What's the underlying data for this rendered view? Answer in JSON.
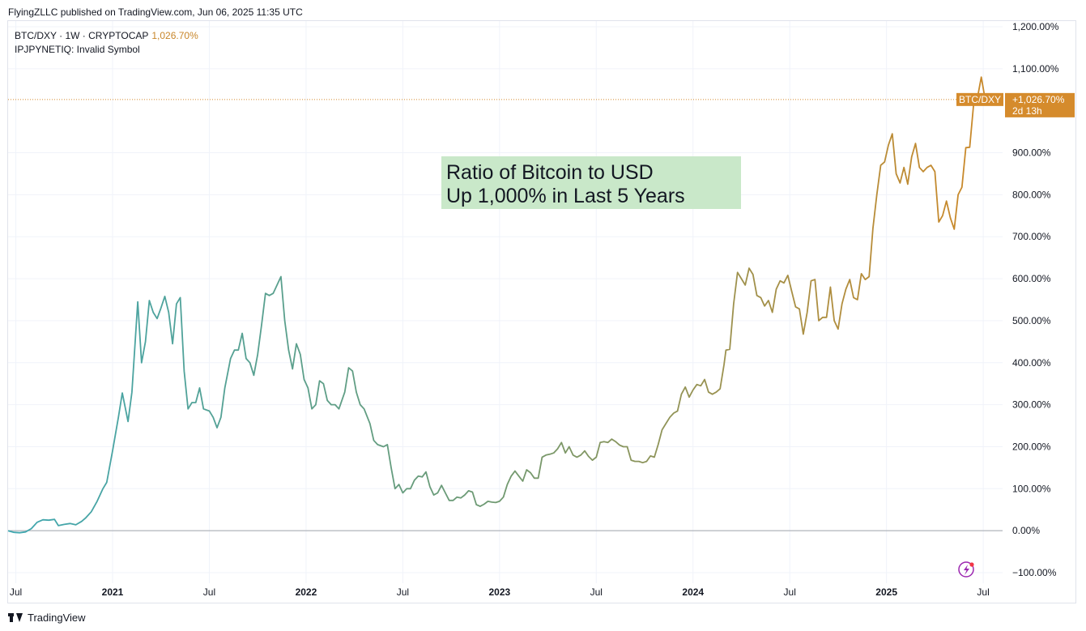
{
  "header": {
    "published_by": "FlyingZLLC published on TradingView.com, Jun 06, 2025 11:35 UTC"
  },
  "legend": {
    "symbol_line": "BTC/DXY · 1W · CRYPTOCAP",
    "symbol_value": "1,026.70%",
    "invalid_line": "IPJPYNETIQ: Invalid Symbol"
  },
  "footer": {
    "brand": "TradingView"
  },
  "colors": {
    "line_start": "#3fa7b0",
    "line_mid": "#6e9a73",
    "line_end": "#c8892b",
    "badge": "#d58b2c",
    "grid": "#f0f3fa",
    "annotation_bg": "#c9e8c9",
    "zero_line": "#a0a4ab"
  },
  "chart_data": {
    "type": "line",
    "title": "",
    "xlabel": "",
    "ylabel": "",
    "ylim": [
      -100,
      1200
    ],
    "xlim": [
      2020.46,
      2025.6
    ],
    "grid": true,
    "y_ticks": [
      "1,200.00%",
      "1,100.00%",
      "900.00%",
      "800.00%",
      "700.00%",
      "600.00%",
      "500.00%",
      "400.00%",
      "300.00%",
      "200.00%",
      "100.00%",
      "0.00%",
      "−100.00%"
    ],
    "y_tick_values": [
      1200,
      1100,
      900,
      800,
      700,
      600,
      500,
      400,
      300,
      200,
      100,
      0,
      -100
    ],
    "x_ticks": [
      {
        "label": "Jul",
        "t": 2020.5,
        "bold": false
      },
      {
        "label": "2021",
        "t": 2021.0,
        "bold": true
      },
      {
        "label": "Jul",
        "t": 2021.5,
        "bold": false
      },
      {
        "label": "2022",
        "t": 2022.0,
        "bold": true
      },
      {
        "label": "Jul",
        "t": 2022.5,
        "bold": false
      },
      {
        "label": "2023",
        "t": 2023.0,
        "bold": true
      },
      {
        "label": "Jul",
        "t": 2023.5,
        "bold": false
      },
      {
        "label": "2024",
        "t": 2024.0,
        "bold": true
      },
      {
        "label": "Jul",
        "t": 2024.5,
        "bold": false
      },
      {
        "label": "2025",
        "t": 2025.0,
        "bold": true
      },
      {
        "label": "Jul",
        "t": 2025.5,
        "bold": false
      }
    ],
    "series": [
      {
        "name": "BTC/DXY",
        "points": [
          [
            2020.46,
            0
          ],
          [
            2020.49,
            -4
          ],
          [
            2020.52,
            -5
          ],
          [
            2020.55,
            -3
          ],
          [
            2020.58,
            5
          ],
          [
            2020.61,
            20
          ],
          [
            2020.64,
            26
          ],
          [
            2020.67,
            25
          ],
          [
            2020.7,
            27
          ],
          [
            2020.72,
            12
          ],
          [
            2020.75,
            15
          ],
          [
            2020.78,
            17
          ],
          [
            2020.81,
            14
          ],
          [
            2020.84,
            22
          ],
          [
            2020.86,
            30
          ],
          [
            2020.89,
            45
          ],
          [
            2020.92,
            70
          ],
          [
            2020.95,
            100
          ],
          [
            2020.97,
            115
          ],
          [
            2021.0,
            190
          ],
          [
            2021.03,
            270
          ],
          [
            2021.05,
            328
          ],
          [
            2021.08,
            260
          ],
          [
            2021.1,
            330
          ],
          [
            2021.13,
            545
          ],
          [
            2021.15,
            400
          ],
          [
            2021.17,
            450
          ],
          [
            2021.19,
            548
          ],
          [
            2021.21,
            520
          ],
          [
            2021.23,
            505
          ],
          [
            2021.25,
            530
          ],
          [
            2021.27,
            558
          ],
          [
            2021.29,
            520
          ],
          [
            2021.31,
            445
          ],
          [
            2021.33,
            540
          ],
          [
            2021.35,
            555
          ],
          [
            2021.37,
            380
          ],
          [
            2021.39,
            290
          ],
          [
            2021.41,
            305
          ],
          [
            2021.43,
            305
          ],
          [
            2021.45,
            340
          ],
          [
            2021.47,
            290
          ],
          [
            2021.5,
            285
          ],
          [
            2021.52,
            270
          ],
          [
            2021.54,
            245
          ],
          [
            2021.56,
            270
          ],
          [
            2021.58,
            340
          ],
          [
            2021.61,
            410
          ],
          [
            2021.63,
            430
          ],
          [
            2021.65,
            430
          ],
          [
            2021.67,
            470
          ],
          [
            2021.69,
            410
          ],
          [
            2021.71,
            400
          ],
          [
            2021.73,
            370
          ],
          [
            2021.75,
            420
          ],
          [
            2021.77,
            490
          ],
          [
            2021.79,
            565
          ],
          [
            2021.81,
            560
          ],
          [
            2021.83,
            565
          ],
          [
            2021.85,
            585
          ],
          [
            2021.87,
            605
          ],
          [
            2021.89,
            500
          ],
          [
            2021.91,
            430
          ],
          [
            2021.93,
            385
          ],
          [
            2021.95,
            445
          ],
          [
            2021.97,
            420
          ],
          [
            2021.99,
            360
          ],
          [
            2022.01,
            340
          ],
          [
            2022.03,
            290
          ],
          [
            2022.05,
            300
          ],
          [
            2022.07,
            357
          ],
          [
            2022.09,
            350
          ],
          [
            2022.11,
            310
          ],
          [
            2022.13,
            300
          ],
          [
            2022.15,
            300
          ],
          [
            2022.17,
            290
          ],
          [
            2022.2,
            330
          ],
          [
            2022.22,
            388
          ],
          [
            2022.24,
            380
          ],
          [
            2022.26,
            330
          ],
          [
            2022.28,
            300
          ],
          [
            2022.3,
            290
          ],
          [
            2022.33,
            255
          ],
          [
            2022.35,
            215
          ],
          [
            2022.37,
            205
          ],
          [
            2022.4,
            200
          ],
          [
            2022.42,
            205
          ],
          [
            2022.44,
            150
          ],
          [
            2022.46,
            100
          ],
          [
            2022.48,
            110
          ],
          [
            2022.5,
            90
          ],
          [
            2022.52,
            100
          ],
          [
            2022.54,
            100
          ],
          [
            2022.56,
            120
          ],
          [
            2022.58,
            130
          ],
          [
            2022.6,
            128
          ],
          [
            2022.62,
            140
          ],
          [
            2022.64,
            105
          ],
          [
            2022.66,
            85
          ],
          [
            2022.68,
            90
          ],
          [
            2022.7,
            108
          ],
          [
            2022.72,
            90
          ],
          [
            2022.74,
            72
          ],
          [
            2022.76,
            72
          ],
          [
            2022.78,
            80
          ],
          [
            2022.8,
            78
          ],
          [
            2022.82,
            85
          ],
          [
            2022.84,
            95
          ],
          [
            2022.86,
            92
          ],
          [
            2022.88,
            62
          ],
          [
            2022.9,
            58
          ],
          [
            2022.92,
            63
          ],
          [
            2022.94,
            70
          ],
          [
            2022.96,
            68
          ],
          [
            2022.98,
            67
          ],
          [
            2023.0,
            70
          ],
          [
            2023.02,
            80
          ],
          [
            2023.04,
            110
          ],
          [
            2023.06,
            130
          ],
          [
            2023.08,
            142
          ],
          [
            2023.1,
            130
          ],
          [
            2023.12,
            118
          ],
          [
            2023.14,
            145
          ],
          [
            2023.16,
            138
          ],
          [
            2023.18,
            125
          ],
          [
            2023.2,
            125
          ],
          [
            2023.22,
            175
          ],
          [
            2023.24,
            180
          ],
          [
            2023.26,
            182
          ],
          [
            2023.28,
            185
          ],
          [
            2023.3,
            195
          ],
          [
            2023.32,
            210
          ],
          [
            2023.34,
            185
          ],
          [
            2023.36,
            200
          ],
          [
            2023.38,
            180
          ],
          [
            2023.4,
            175
          ],
          [
            2023.42,
            180
          ],
          [
            2023.44,
            190
          ],
          [
            2023.46,
            177
          ],
          [
            2023.48,
            168
          ],
          [
            2023.5,
            175
          ],
          [
            2023.52,
            210
          ],
          [
            2023.54,
            212
          ],
          [
            2023.56,
            210
          ],
          [
            2023.58,
            218
          ],
          [
            2023.6,
            212
          ],
          [
            2023.62,
            204
          ],
          [
            2023.64,
            200
          ],
          [
            2023.66,
            200
          ],
          [
            2023.68,
            168
          ],
          [
            2023.7,
            165
          ],
          [
            2023.72,
            165
          ],
          [
            2023.74,
            162
          ],
          [
            2023.76,
            165
          ],
          [
            2023.78,
            178
          ],
          [
            2023.8,
            175
          ],
          [
            2023.82,
            205
          ],
          [
            2023.84,
            240
          ],
          [
            2023.86,
            255
          ],
          [
            2023.88,
            270
          ],
          [
            2023.9,
            280
          ],
          [
            2023.92,
            285
          ],
          [
            2023.94,
            325
          ],
          [
            2023.96,
            342
          ],
          [
            2023.98,
            318
          ],
          [
            2024.0,
            335
          ],
          [
            2024.02,
            348
          ],
          [
            2024.04,
            345
          ],
          [
            2024.06,
            360
          ],
          [
            2024.08,
            330
          ],
          [
            2024.1,
            325
          ],
          [
            2024.12,
            330
          ],
          [
            2024.14,
            338
          ],
          [
            2024.16,
            395
          ],
          [
            2024.17,
            430
          ],
          [
            2024.19,
            432
          ],
          [
            2024.21,
            540
          ],
          [
            2024.23,
            615
          ],
          [
            2024.25,
            600
          ],
          [
            2024.27,
            585
          ],
          [
            2024.29,
            625
          ],
          [
            2024.31,
            610
          ],
          [
            2024.33,
            560
          ],
          [
            2024.35,
            555
          ],
          [
            2024.37,
            535
          ],
          [
            2024.39,
            548
          ],
          [
            2024.41,
            520
          ],
          [
            2024.43,
            575
          ],
          [
            2024.45,
            595
          ],
          [
            2024.47,
            590
          ],
          [
            2024.49,
            608
          ],
          [
            2024.51,
            570
          ],
          [
            2024.53,
            533
          ],
          [
            2024.55,
            528
          ],
          [
            2024.57,
            468
          ],
          [
            2024.59,
            520
          ],
          [
            2024.61,
            595
          ],
          [
            2024.63,
            598
          ],
          [
            2024.65,
            500
          ],
          [
            2024.67,
            508
          ],
          [
            2024.69,
            508
          ],
          [
            2024.71,
            580
          ],
          [
            2024.73,
            500
          ],
          [
            2024.75,
            480
          ],
          [
            2024.77,
            540
          ],
          [
            2024.79,
            575
          ],
          [
            2024.81,
            598
          ],
          [
            2024.83,
            555
          ],
          [
            2024.85,
            550
          ],
          [
            2024.87,
            612
          ],
          [
            2024.89,
            598
          ],
          [
            2024.91,
            605
          ],
          [
            2024.93,
            720
          ],
          [
            2024.95,
            800
          ],
          [
            2024.97,
            870
          ],
          [
            2024.99,
            878
          ],
          [
            2025.01,
            918
          ],
          [
            2025.03,
            945
          ],
          [
            2025.05,
            850
          ],
          [
            2025.07,
            828
          ],
          [
            2025.09,
            865
          ],
          [
            2025.11,
            825
          ],
          [
            2025.13,
            890
          ],
          [
            2025.15,
            922
          ],
          [
            2025.17,
            865
          ],
          [
            2025.19,
            855
          ],
          [
            2025.21,
            865
          ],
          [
            2025.23,
            870
          ],
          [
            2025.25,
            855
          ],
          [
            2025.27,
            735
          ],
          [
            2025.29,
            750
          ],
          [
            2025.31,
            785
          ],
          [
            2025.33,
            745
          ],
          [
            2025.35,
            718
          ],
          [
            2025.37,
            800
          ],
          [
            2025.39,
            818
          ],
          [
            2025.41,
            912
          ],
          [
            2025.43,
            913
          ],
          [
            2025.45,
            1015
          ],
          [
            2025.47,
            1030
          ],
          [
            2025.49,
            1080
          ],
          [
            2025.51,
            1026.7
          ]
        ]
      }
    ],
    "last_value_badge": {
      "symbol_label": "BTC/DXY",
      "value_label": "+1,026.70%",
      "countdown_label": "2d 13h",
      "value": 1026.7
    },
    "annotation": {
      "lines": [
        "Ratio of Bitcoin to USD",
        "Up 1,000% in Last 5 Years"
      ]
    }
  }
}
